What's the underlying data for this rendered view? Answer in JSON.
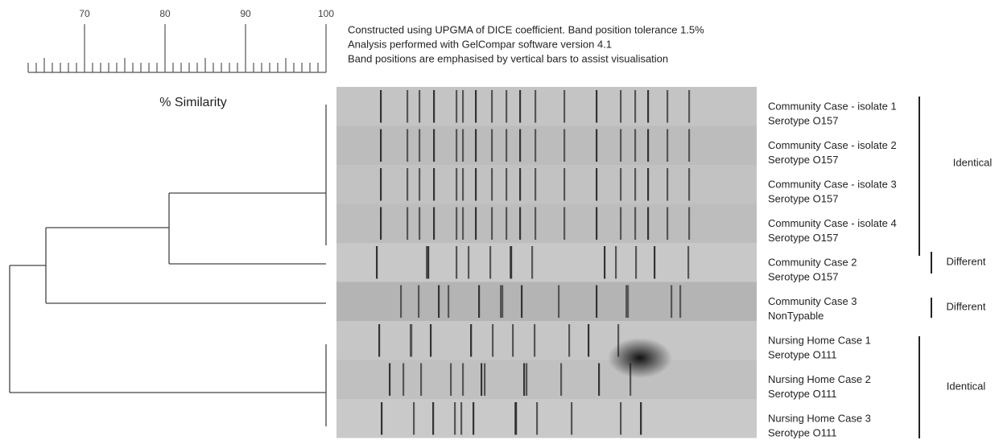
{
  "scale": {
    "ticks": [
      "70",
      "80",
      "90",
      "100"
    ],
    "label": "% Similarity"
  },
  "notes": [
    "Constructed using UPGMA of DICE coefficient. Band position tolerance 1.5%",
    "Analysis performed with GelCompar software version 4.1",
    "Band positions are emphasised by vertical bars to assist visualisation"
  ],
  "lanes": [
    {
      "name": "Community Case - isolate 1",
      "serotype": "Serotype O157"
    },
    {
      "name": "Community Case - isolate 2",
      "serotype": "Serotype O157"
    },
    {
      "name": "Community Case - isolate 3",
      "serotype": "Serotype O157"
    },
    {
      "name": "Community Case - isolate 4",
      "serotype": "Serotype O157"
    },
    {
      "name": "Community Case 2",
      "serotype": "Serotype O157"
    },
    {
      "name": "Community Case 3",
      "serotype": "NonTypable"
    },
    {
      "name": "Nursing Home Case 1",
      "serotype": "Serotype O111"
    },
    {
      "name": "Nursing Home Case 2",
      "serotype": "Serotype O111"
    },
    {
      "name": "Nursing Home Case 3",
      "serotype": "Serotype O111"
    }
  ],
  "groups": [
    "Identical",
    "Different",
    "Different",
    "Identical"
  ]
}
